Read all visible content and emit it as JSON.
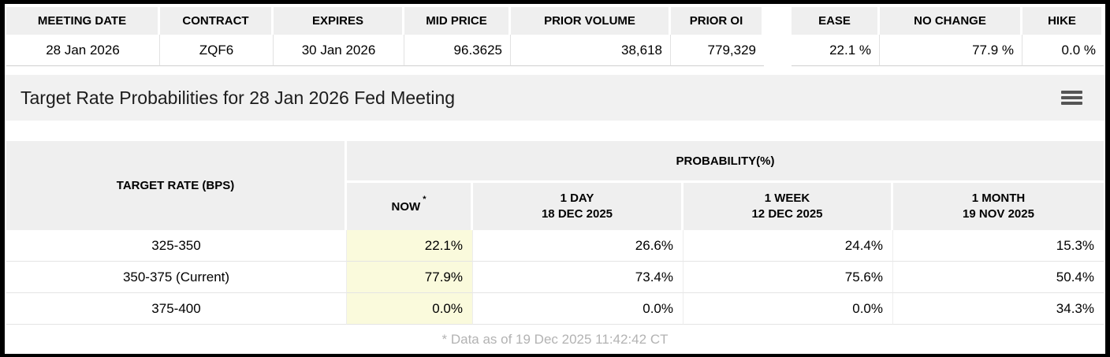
{
  "summary": {
    "left": [
      {
        "label": "MEETING DATE",
        "value": "28 Jan 2026"
      },
      {
        "label": "CONTRACT",
        "value": "ZQF6"
      },
      {
        "label": "EXPIRES",
        "value": "30 Jan 2026"
      },
      {
        "label": "MID PRICE",
        "value": "96.3625"
      },
      {
        "label": "PRIOR VOLUME",
        "value": "38,618"
      },
      {
        "label": "PRIOR OI",
        "value": "779,329"
      }
    ],
    "right": [
      {
        "label": "EASE",
        "value": "22.1 %"
      },
      {
        "label": "NO CHANGE",
        "value": "77.9 %"
      },
      {
        "label": "HIKE",
        "value": "0.0 %"
      }
    ]
  },
  "chart": {
    "title": "Target Rate Probabilities for 28 Jan 2026 Fed Meeting",
    "menu_icon": "hamburger-icon"
  },
  "prob_table": {
    "corner_header": "TARGET RATE (BPS)",
    "group_header": "PROBABILITY(%)",
    "columns": [
      {
        "line1": "NOW",
        "asterisk": "*",
        "line2": ""
      },
      {
        "line1": "1 DAY",
        "line2": "18 DEC 2025"
      },
      {
        "line1": "1 WEEK",
        "line2": "12 DEC 2025"
      },
      {
        "line1": "1 MONTH",
        "line2": "19 NOV 2025"
      }
    ],
    "rows": [
      {
        "rate": "325-350",
        "now": "22.1%",
        "day1": "26.6%",
        "week1": "24.4%",
        "month1": "15.3%"
      },
      {
        "rate": "350-375 (Current)",
        "now": "77.9%",
        "day1": "73.4%",
        "week1": "75.6%",
        "month1": "50.4%"
      },
      {
        "rate": "375-400",
        "now": "0.0%",
        "day1": "0.0%",
        "week1": "0.0%",
        "month1": "34.3%"
      }
    ],
    "footnote": "* Data as of 19 Dec 2025 11:42:42 CT"
  },
  "colors": {
    "header_bg": "#efefef",
    "title_bar_bg": "#f1f1f1",
    "now_highlight": "#fafadc",
    "footnote_text": "#b3b3b3"
  }
}
